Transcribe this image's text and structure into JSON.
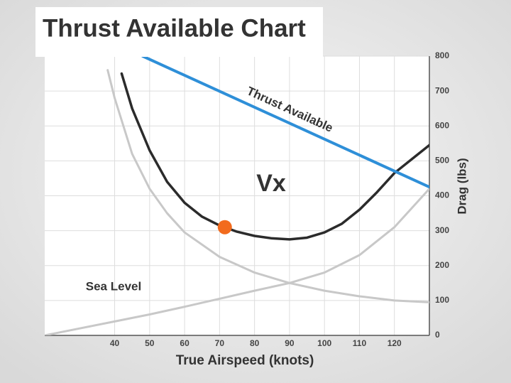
{
  "chart_data": {
    "type": "line",
    "title": "Thrust Available Chart",
    "x_label": "True Airspeed (knots)",
    "y_label": "Drag (lbs)",
    "xlim": [
      20,
      130
    ],
    "ylim": [
      0,
      800
    ],
    "xticks": [
      40,
      50,
      60,
      70,
      80,
      90,
      100,
      110,
      120
    ],
    "yticks": [
      0,
      100,
      200,
      300,
      400,
      500,
      600,
      700,
      800
    ],
    "grid": true,
    "series": [
      {
        "name": "Thrust Available",
        "color": "#2e8fd8",
        "x": [
          48,
          130
        ],
        "values": [
          800,
          425
        ]
      },
      {
        "color": "#2b2b2b",
        "x": [
          42,
          45,
          50,
          55,
          60,
          65,
          70,
          75,
          80,
          85,
          90,
          95,
          100,
          105,
          110,
          115,
          120,
          125,
          130
        ],
        "values": [
          750,
          650,
          530,
          440,
          380,
          340,
          315,
          297,
          285,
          278,
          275,
          280,
          295,
          320,
          360,
          410,
          465,
          505,
          545
        ]
      },
      {
        "color": "#c8c8c8",
        "x": [
          38,
          40,
          45,
          50,
          55,
          60,
          70,
          80,
          90,
          100,
          110,
          120,
          130
        ],
        "values": [
          760,
          680,
          520,
          420,
          350,
          295,
          225,
          180,
          150,
          128,
          112,
          100,
          95
        ]
      },
      {
        "color": "#c8c8c8",
        "x": [
          20,
          30,
          40,
          50,
          60,
          70,
          80,
          90,
          100,
          110,
          120,
          130
        ],
        "values": [
          0,
          20,
          40,
          60,
          82,
          105,
          128,
          150,
          180,
          230,
          310,
          420
        ]
      }
    ],
    "point": {
      "label": "Vx",
      "x": 71.5,
      "y": 310,
      "color": "#f26b1d"
    },
    "annotation": "Sea Level"
  }
}
